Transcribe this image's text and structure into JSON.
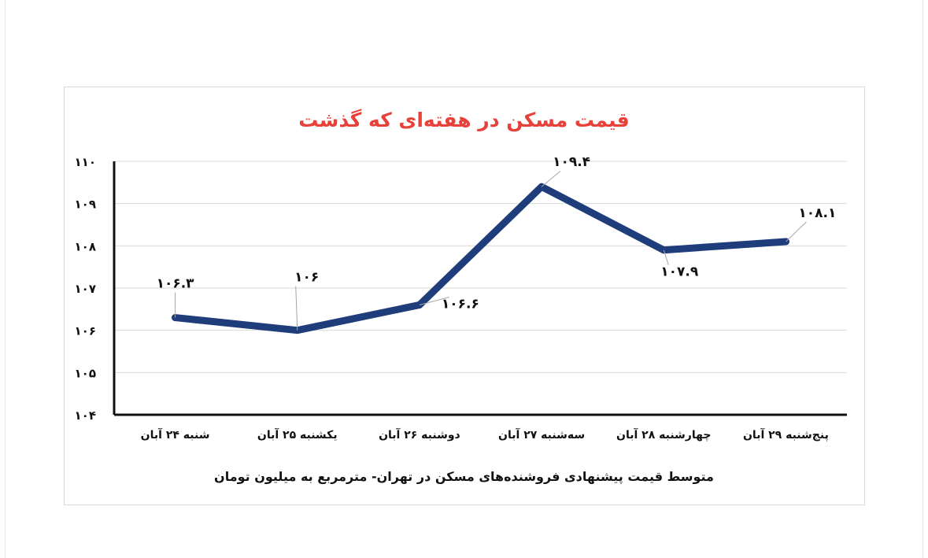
{
  "chart_data": {
    "type": "line",
    "title": "قیمت مسکن در هفته‌ای که گذشت",
    "xlabel": "متوسط قیمت پیشنهادی فروشنده‌های مسکن در تهران- مترمربع به میلیون تومان",
    "ylabel": "",
    "categories": [
      "شنبه ۲۴ آبان",
      "یکشنبه ۲۵ آبان",
      "دوشنبه ۲۶ آبان",
      "سه‌شنبه ۲۷ آبان",
      "چهارشنبه ۲۸ آبان",
      "پنج‌شنبه ۲۹ آبان"
    ],
    "values": [
      106.3,
      106,
      106.6,
      109.4,
      107.9,
      108.1
    ],
    "data_labels": [
      "۱۰۶.۳",
      "۱۰۶",
      "۱۰۶.۶",
      "۱۰۹.۴",
      "۱۰۷.۹",
      "۱۰۸.۱"
    ],
    "ylim": [
      104,
      110
    ],
    "yticks": [
      104,
      105,
      106,
      107,
      108,
      109,
      110
    ],
    "ytick_labels": [
      "۱۰۴",
      "۱۰۵",
      "۱۰۶",
      "۱۰۷",
      "۱۰۸",
      "۱۰۹",
      "۱۱۰"
    ],
    "grid": true,
    "legend": "none",
    "line_color": "#1f3d7a",
    "title_color": "#e8413a"
  }
}
